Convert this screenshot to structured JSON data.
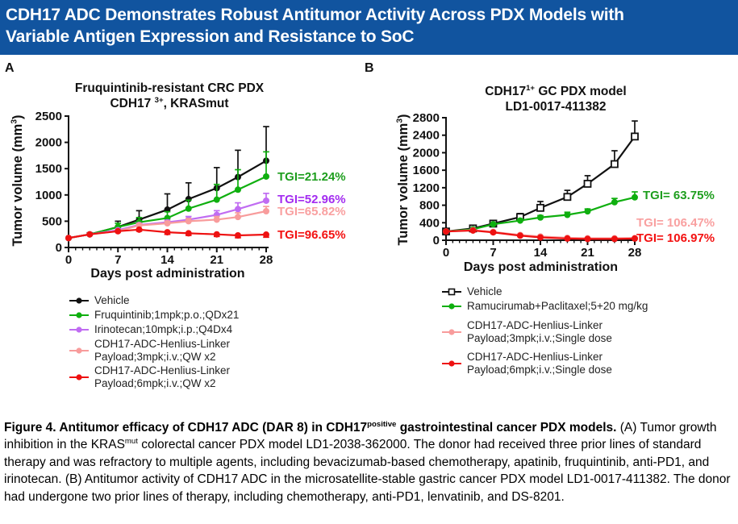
{
  "header": {
    "title": "CDH17 ADC Demonstrates Robust Antitumor Activity Across PDX Models with\nVariable Antigen Expression and Resistance to SoC",
    "bg_color": "#11549F",
    "text_color": "#FFFFFF"
  },
  "panels": [
    {
      "label": "A",
      "title_parts": [
        {
          "text": "Fruquintinib-resistant CRC PDX\nCDH17 "
        },
        {
          "text": "3+",
          "sup": true
        },
        {
          "text": ", KRASmut"
        }
      ],
      "ylabel_parts": [
        {
          "text": "Tumor volume (mm"
        },
        {
          "text": "3",
          "sup": true
        },
        {
          "text": ")"
        }
      ],
      "xlabel": "Days post administration",
      "legend": [
        {
          "lines": [
            "Vehicle"
          ],
          "color": "#111111",
          "marker": "circle"
        },
        {
          "lines": [
            "Fruquintinib;1mpk;p.o.;QDx21"
          ],
          "color": "#0FAF0F",
          "marker": "circle"
        },
        {
          "lines": [
            "Irinotecan;10mpk;i.p.;Q4Dx4"
          ],
          "color": "#C06CF2",
          "marker": "circle"
        },
        {
          "lines": [
            "CDH17-ADC-Henlius-Linker",
            "Payload;3mpk;i.v.;QW x2"
          ],
          "color": "#F89C9C",
          "marker": "circle"
        },
        {
          "lines": [
            "CDH17-ADC-Henlius-Linker",
            "Payload;6mpk;i.v.;QW x2"
          ],
          "color": "#EE1111",
          "marker": "circle"
        }
      ]
    },
    {
      "label": "B",
      "title_parts": [
        {
          "text": "CDH17"
        },
        {
          "text": "1+",
          "sup": true
        },
        {
          "text": " GC PDX model\nLD1-0017-411382"
        }
      ],
      "ylabel_parts": [
        {
          "text": "Tumor volume (mm"
        },
        {
          "text": "3",
          "sup": true
        },
        {
          "text": ")"
        }
      ],
      "xlabel": "Days post administration",
      "legend": [
        {
          "lines": [
            "Vehicle"
          ],
          "color": "#111111",
          "marker": "square-open"
        },
        {
          "lines": [
            "Ramucirumab+Paclitaxel;5+20 mg/kg"
          ],
          "color": "#0FAF0F",
          "marker": "circle"
        },
        {
          "lines": [
            "CDH17-ADC-Henlius-Linker",
            "Payload;3mpk;i.v.;Single dose"
          ],
          "color": "#F89C9C",
          "marker": "circle"
        },
        {
          "lines": [
            "CDH17-ADC-Henlius-Linker",
            "Payload;6mpk;i.v.;Single dose"
          ],
          "color": "#EE1111",
          "marker": "circle"
        }
      ]
    }
  ],
  "chart_data": [
    {
      "type": "line",
      "title": "Fruquintinib-resistant CRC PDX CDH17 3+, KRASmut",
      "xlabel": "Days post administration",
      "ylabel": "Tumor volume (mm3)",
      "xlim": [
        0,
        28
      ],
      "ylim": [
        0,
        2500
      ],
      "xticks": [
        0,
        7,
        14,
        21,
        28
      ],
      "yticks": [
        0,
        500,
        1000,
        1500,
        2000,
        2500
      ],
      "x_minor_step": 1,
      "grid": false,
      "x": [
        0,
        3,
        7,
        10,
        14,
        17,
        21,
        24,
        28
      ],
      "series": [
        {
          "name": "Vehicle",
          "color": "#111111",
          "marker": "circle",
          "err_dir": "up",
          "values": [
            180,
            250,
            390,
            530,
            720,
            920,
            1130,
            1340,
            1650
          ],
          "err": [
            0,
            30,
            110,
            170,
            300,
            310,
            390,
            510,
            650
          ]
        },
        {
          "name": "Fruquintinib;1mpk;p.o.;QDx21",
          "color": "#0FAF0F",
          "marker": "circle",
          "err_dir": "up",
          "values": [
            180,
            250,
            390,
            480,
            560,
            740,
            910,
            1100,
            1350
          ],
          "err": [
            0,
            20,
            70,
            90,
            120,
            160,
            290,
            380,
            470
          ]
        },
        {
          "name": "Irinotecan;10mpk;i.p.;Q4Dx4",
          "color": "#C06CF2",
          "marker": "circle",
          "err_dir": "up",
          "values": [
            180,
            250,
            330,
            430,
            480,
            530,
            620,
            730,
            890
          ],
          "err": [
            0,
            10,
            20,
            30,
            40,
            60,
            80,
            120,
            140
          ]
        },
        {
          "name": "CDH17-ADC-Henlius-Linker Payload;3mpk;i.v.;QW x2",
          "color": "#F89C9C",
          "marker": "circle",
          "err_dir": "up",
          "values": [
            180,
            250,
            310,
            420,
            460,
            500,
            530,
            580,
            690
          ],
          "err": [
            0,
            10,
            20,
            30,
            40,
            50,
            60,
            80,
            90
          ]
        },
        {
          "name": "CDH17-ADC-Henlius-Linker Payload;6mpk;i.v.;QW x2",
          "color": "#EE1111",
          "marker": "circle",
          "err_dir": "down",
          "values": [
            180,
            250,
            310,
            340,
            290,
            270,
            250,
            230,
            245
          ],
          "err": [
            0,
            10,
            15,
            30,
            40,
            40,
            40,
            45,
            50
          ]
        }
      ],
      "annotations": [
        {
          "text": "TGI=21.24%",
          "color": "#1E9E1E"
        },
        {
          "text": "TGI=52.96%",
          "color": "#A32CF0"
        },
        {
          "text": "TGI=65.82%",
          "color": "#F9A0A0"
        },
        {
          "text": "TGI=96.65%",
          "color": "#F31111"
        }
      ]
    },
    {
      "type": "line",
      "title": "CDH17 1+ GC PDX model LD1-0017-411382",
      "xlabel": "Days post administration",
      "ylabel": "Tumor volume (mm3)",
      "xlim": [
        0,
        28
      ],
      "ylim": [
        0,
        2800
      ],
      "xticks": [
        0,
        7,
        14,
        21,
        28
      ],
      "yticks": [
        0,
        400,
        800,
        1200,
        1600,
        2000,
        2400,
        2800
      ],
      "x_minor_step": 1,
      "grid": false,
      "x": [
        0,
        4,
        7,
        11,
        14,
        18,
        21,
        25,
        28
      ],
      "series": [
        {
          "name": "Vehicle",
          "color": "#111111",
          "marker": "square-open",
          "err_dir": "up",
          "values": [
            200,
            270,
            380,
            530,
            740,
            990,
            1290,
            1740,
            2370
          ],
          "err": [
            0,
            40,
            60,
            80,
            145,
            150,
            185,
            305,
            355
          ]
        },
        {
          "name": "Ramucirumab+Paclitaxel;5+20 mg/kg",
          "color": "#0FAF0F",
          "marker": "circle",
          "err_dir": "up",
          "values": [
            200,
            250,
            365,
            450,
            520,
            580,
            660,
            870,
            980
          ],
          "err": [
            0,
            15,
            25,
            35,
            45,
            60,
            55,
            85,
            125
          ]
        },
        {
          "name": "CDH17-ADC-Henlius-Linker Payload;3mpk;i.v.;Single dose",
          "color": "#F89C9C",
          "marker": "circle",
          "err_dir": "up",
          "values": [
            200,
            230,
            190,
            120,
            85,
            55,
            45,
            45,
            50
          ],
          "err": [
            0,
            20,
            25,
            20,
            15,
            10,
            10,
            10,
            12
          ]
        },
        {
          "name": "CDH17-ADC-Henlius-Linker Payload;6mpk;i.v.;Single dose",
          "color": "#EE1111",
          "marker": "circle",
          "err_dir": "down",
          "values": [
            200,
            222,
            180,
            105,
            65,
            38,
            30,
            30,
            38
          ],
          "err": [
            0,
            15,
            20,
            15,
            10,
            8,
            8,
            8,
            10
          ]
        }
      ],
      "annotations": [
        {
          "text": "TGI= 63.75%",
          "color": "#1E9E1E"
        },
        {
          "text": "TGI= 106.47%",
          "color": "#F9A0A0"
        },
        {
          "text": "TGI= 106.97%",
          "color": "#F31111"
        }
      ]
    }
  ],
  "caption": {
    "parts": [
      {
        "text": "Figure 4. Antitumor efficacy of CDH17 ADC (DAR 8) in CDH17",
        "bold": true
      },
      {
        "text": "positive",
        "bold": true,
        "sup": true
      },
      {
        "text": " gastrointestinal cancer PDX models.",
        "bold": true
      },
      {
        "text": " (A) Tumor growth inhibition in the KRAS"
      },
      {
        "text": "mut",
        "sup": true
      },
      {
        "text": " colorectal cancer PDX model LD1-2038-362000. The donor had received three prior lines of standard therapy and was refractory to multiple agents, including bevacizumab-based chemotherapy, apatinib, fruquintinib, anti-PD1, and irinotecan. (B) Antitumor activity of CDH17 ADC in the microsatellite-stable gastric cancer PDX model LD1-0017-411382. The donor had undergone two prior lines of therapy, including chemotherapy, anti-PD1, lenvatinib, and DS-8201."
      }
    ]
  }
}
